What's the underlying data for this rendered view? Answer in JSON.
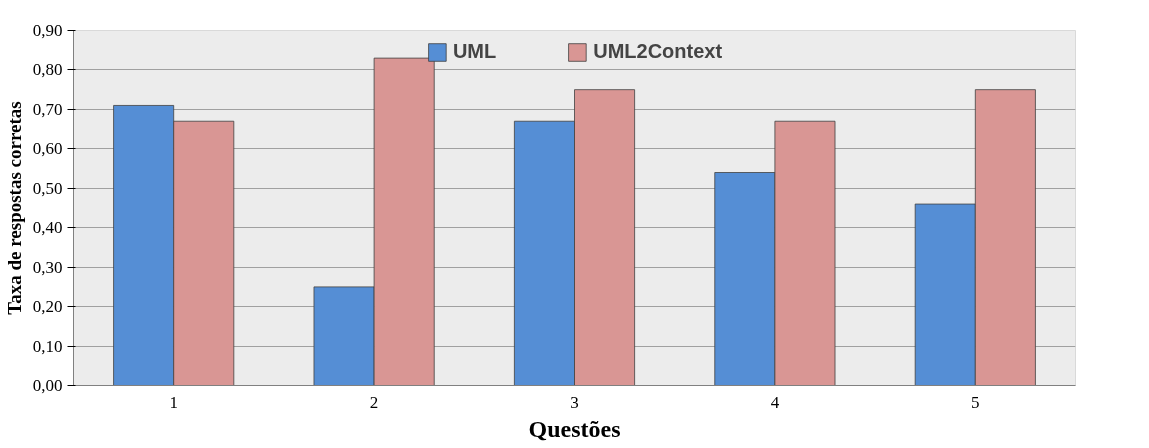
{
  "chart_data": {
    "type": "bar",
    "xlabel": "Questões",
    "ylabel": "Taxa de respostas corretas",
    "categories": [
      "1",
      "2",
      "3",
      "4",
      "5"
    ],
    "series": [
      {
        "name": "UML",
        "color": "#558ed5",
        "values": [
          0.71,
          0.25,
          0.67,
          0.54,
          0.46
        ]
      },
      {
        "name": "UML2Context",
        "color": "#d99694",
        "values": [
          0.67,
          0.83,
          0.75,
          0.67,
          0.75
        ]
      }
    ],
    "ylim": [
      0,
      0.9
    ],
    "yticks": [
      {
        "value": 0,
        "label": "0,00"
      },
      {
        "value": 0.1,
        "label": "0,10"
      },
      {
        "value": 0.2,
        "label": "0,20"
      },
      {
        "value": 0.3,
        "label": "0,30"
      },
      {
        "value": 0.4,
        "label": "0,40"
      },
      {
        "value": 0.5,
        "label": "0,50"
      },
      {
        "value": 0.6,
        "label": "0,60"
      },
      {
        "value": 0.7,
        "label": "0,70"
      },
      {
        "value": 0.8,
        "label": "0,80"
      },
      {
        "value": 0.9,
        "label": "0,90"
      }
    ],
    "grid": "y",
    "legend": "top"
  }
}
